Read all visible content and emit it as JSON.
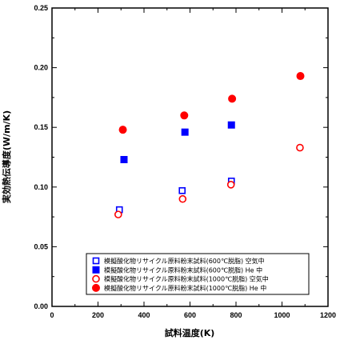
{
  "chart_data": {
    "type": "scatter",
    "xlabel": "試料温度(K)",
    "ylabel": "実効熱伝導度(W/m/K)",
    "xlim": [
      0,
      1200
    ],
    "ylim": [
      0,
      0.25
    ],
    "x_ticks": [
      "0",
      "200",
      "400",
      "600",
      "800",
      "1000",
      "1200"
    ],
    "y_ticks": [
      "0.00",
      "0.05",
      "0.10",
      "0.15",
      "0.20",
      "0.25"
    ],
    "grid": false,
    "legend_position": "bottom-center",
    "series": [
      {
        "name": "模擬酸化物リサイクル原料粉末試料(600℃脱脂) 空気中",
        "marker": "square-open",
        "color": "#0000ff",
        "points": [
          [
            293,
            0.081
          ],
          [
            566,
            0.097
          ],
          [
            780,
            0.105
          ]
        ]
      },
      {
        "name": "模擬酸化物リサイクル原料粉末試料(600℃脱脂) He 中",
        "marker": "square-filled",
        "color": "#0000ff",
        "points": [
          [
            313,
            0.123
          ],
          [
            578,
            0.146
          ],
          [
            780,
            0.152
          ]
        ]
      },
      {
        "name": "模擬酸化物リサイクル原料粉末試料(1000℃脱脂) 空気中",
        "marker": "circle-open",
        "color": "#ff0000",
        "points": [
          [
            288,
            0.077
          ],
          [
            568,
            0.09
          ],
          [
            778,
            0.102
          ],
          [
            1078,
            0.133
          ]
        ]
      },
      {
        "name": "模擬酸化物リサイクル原料粉末試料(1000℃脱脂) He 中",
        "marker": "circle-filled",
        "color": "#ff0000",
        "points": [
          [
            308,
            0.148
          ],
          [
            575,
            0.16
          ],
          [
            783,
            0.174
          ],
          [
            1080,
            0.193
          ]
        ]
      }
    ]
  }
}
